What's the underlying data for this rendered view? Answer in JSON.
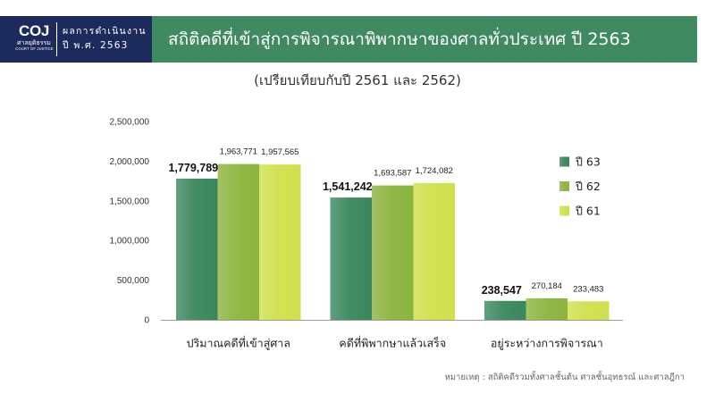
{
  "theme": {
    "header_navy": "#1c2a5c",
    "header_green": "#3f8a60"
  },
  "header": {
    "logo": {
      "mark": "COJ",
      "name_th": "ศาลยุติธรรม",
      "name_en": "COURT OF JUSTICE"
    },
    "section": {
      "line1": "ผลการดำเนินงาน",
      "line2": "ปี พ.ศ. 2563"
    }
  },
  "chart_data": {
    "type": "bar",
    "title": "สถิติคดีที่เข้าสู่การพิจารณาพิพากษาของศาลทั่วประเทศ ปี 2563",
    "subtitle": "(เปรียบเทียบกับปี 2561 และ 2562)",
    "categories": [
      "ปริมาณคดีที่เข้าสู่ศาล",
      "คดีที่พิพากษาแล้วเสร็จ",
      "อยู่ระหว่างการพิจารณา"
    ],
    "series": [
      {
        "name": "ปี 63",
        "color": "#3a875c",
        "values": [
          1779789,
          1541242,
          238547
        ],
        "data_labels": [
          "1,779,789",
          "1,541,242",
          "238,547"
        ]
      },
      {
        "name": "ปี 62",
        "color": "#8cb43e",
        "values": [
          1963771,
          1693587,
          270184
        ],
        "data_labels": [
          "1,963,771",
          "1,693,587",
          "270,184"
        ]
      },
      {
        "name": "ปี 61",
        "color": "#cfe04b",
        "values": [
          1957565,
          1724082,
          233483
        ],
        "data_labels": [
          "1,957,565",
          "1,724,082",
          "233,483"
        ]
      }
    ],
    "y_axis": {
      "min": 0,
      "max": 2500000,
      "ticks": [
        0,
        500000,
        1000000,
        1500000,
        2000000,
        2500000
      ],
      "tick_labels": [
        "0",
        "500,000",
        "1,000,000",
        "1,500,000",
        "2,000,000",
        "2,500,000"
      ]
    },
    "grid": false,
    "legend": "right",
    "note": "หมายเหตุ : สถิติคดีรวมทั้งศาลชั้นต้น ศาลชั้นอุทธรณ์ และศาลฎีกา"
  }
}
